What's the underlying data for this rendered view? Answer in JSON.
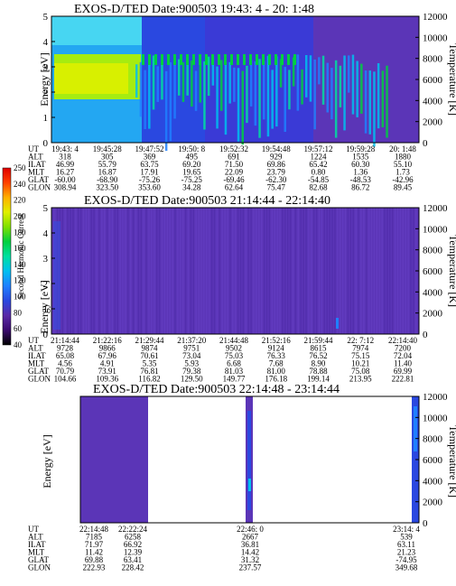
{
  "colors": {
    "scale": [
      "#000000",
      "#3a0a6e",
      "#5a2aa8",
      "#2a48e0",
      "#1f80ff",
      "#00c0f0",
      "#00e0a0",
      "#00d040",
      "#80e000",
      "#e0f000",
      "#ffb000",
      "#ff4000",
      "#e00000"
    ],
    "background_quiet": "#5b35b7"
  },
  "colorbar": {
    "label": "Second Harmonic Current",
    "ticks": [
      "40",
      "60",
      "80",
      "100",
      "120",
      "140",
      "160",
      "180",
      "200",
      "220",
      "240",
      "250"
    ]
  },
  "chart_data": [
    {
      "type": "heatmap",
      "title": "EXOS-D/TED   Date:900503  19:43: 4 - 20: 1:48",
      "ylabel": "Energy [eV]",
      "ylabel_right": "Temperature [K]",
      "ylim": [
        0,
        5
      ],
      "yticks": [
        "0",
        "1",
        "2",
        "3",
        "4",
        "5"
      ],
      "ylim_right": [
        0,
        12000
      ],
      "yticks_right": [
        "0",
        "2000",
        "4000",
        "6000",
        "8000",
        "10000",
        "12000"
      ],
      "x_ticks": [
        "19:43: 4",
        "19:45:28",
        "19:47:52",
        "19:50: 8",
        "19:52:32",
        "19:54:48",
        "19:57:12",
        "19:59:28",
        "20: 1:48"
      ],
      "aux_table": {
        "rows": [
          "UT",
          "ALT",
          "ILAT",
          "MLT",
          "GLAT",
          "GLON"
        ],
        "columns": [
          [
            "19:43: 4",
            "318",
            "46.99",
            "16.27",
            "-60.00",
            "308.94"
          ],
          [
            "19:45:28",
            "305",
            "55.79",
            "16.87",
            "-68.90",
            "323.50"
          ],
          [
            "19:47:52",
            "369",
            "63.75",
            "17.91",
            "-75.26",
            "353.60"
          ],
          [
            "19:50: 8",
            "495",
            "69.20",
            "19.65",
            "-75.25",
            "34.28"
          ],
          [
            "19:52:32",
            "691",
            "71.50",
            "22.09",
            "-69.46",
            "62.64"
          ],
          [
            "19:54:48",
            "929",
            "69.86",
            "23.79",
            "-62.30",
            "75.47"
          ],
          [
            "19:57:12",
            "1224",
            "65.42",
            "0.80",
            "-54.85",
            "82.68"
          ],
          [
            "19:59:28",
            "1535",
            "60.30",
            "1.36",
            "-48.53",
            "86.72"
          ],
          [
            "20: 1:48",
            "1880",
            "55.10",
            "1.73",
            "-42.96",
            "89.45"
          ]
        ]
      }
    },
    {
      "type": "heatmap",
      "title": "EXOS-D/TED   Date:900503  21:14:44 - 22:14:40",
      "ylabel": "Energy [eV]",
      "ylabel_right": "Temperature [K]",
      "ylim": [
        0,
        5
      ],
      "yticks": [
        "0",
        "1",
        "2",
        "3",
        "4",
        "5"
      ],
      "ylim_right": [
        0,
        12000
      ],
      "yticks_right": [
        "0",
        "2000",
        "4000",
        "6000",
        "8000",
        "10000",
        "12000"
      ],
      "x_ticks": [
        "21:14:44",
        "21:22:16",
        "21:29:44",
        "21:37:20",
        "21:44:48",
        "21:52:16",
        "21:59:44",
        "22: 7:12",
        "22:14:40"
      ],
      "aux_table": {
        "rows": [
          "UT",
          "ALT",
          "ILAT",
          "MLT",
          "GLAT",
          "GLON"
        ],
        "columns": [
          [
            "21:14:44",
            "9728",
            "65.08",
            "4.56",
            "70.79",
            "104.66"
          ],
          [
            "21:22:16",
            "9866",
            "67.96",
            "4.91",
            "73.91",
            "109.36"
          ],
          [
            "21:29:44",
            "9874",
            "70.61",
            "5.35",
            "76.81",
            "116.82"
          ],
          [
            "21:37:20",
            "9751",
            "73.04",
            "5.93",
            "79.38",
            "129.50"
          ],
          [
            "21:44:48",
            "9502",
            "75.03",
            "6.68",
            "81.03",
            "149.77"
          ],
          [
            "21:52:16",
            "9124",
            "76.33",
            "7.68",
            "81.00",
            "176.18"
          ],
          [
            "21:59:44",
            "8615",
            "76.52",
            "8.90",
            "78.88",
            "199.14"
          ],
          [
            "22: 7:12",
            "7974",
            "75.15",
            "10.21",
            "75.08",
            "213.95"
          ],
          [
            "22:14:40",
            "7200",
            "72.04",
            "11.40",
            "69.99",
            "222.81"
          ]
        ]
      }
    },
    {
      "type": "heatmap",
      "title": "EXOS-D/TED   Date:900503  22:14:48 - 23:14:44",
      "ylabel": "Energy [eV]",
      "ylabel_right": "Temperature [K]",
      "ylim_right": [
        0,
        12000
      ],
      "yticks_right": [
        "0",
        "2000",
        "4000",
        "6000",
        "8000",
        "10000",
        "12000"
      ],
      "x_ticks": [
        "22:14:48",
        "22:22:24",
        "22:46: 0",
        "23:14: 4"
      ],
      "aux_table": {
        "rows": [
          "UT",
          "ALT",
          "ILAT",
          "MLT",
          "GLAT",
          "GLON"
        ],
        "columns": [
          [
            "22:14:48",
            "7185",
            "71.97",
            "11.42",
            "69.88",
            "222.93"
          ],
          [
            "22:22:24",
            "6258",
            "66.92",
            "12.39",
            "63.41",
            "228.42"
          ],
          [
            "22:46: 0",
            "2667",
            "36.81",
            "14.42",
            "31.32",
            "237.57"
          ],
          [
            "23:14: 4",
            "539",
            "63.11",
            "21.23",
            "-74.95",
            "349.68"
          ]
        ]
      }
    }
  ]
}
